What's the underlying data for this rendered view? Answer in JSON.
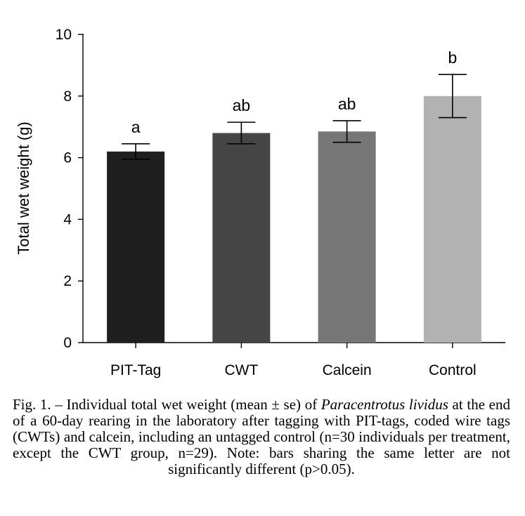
{
  "chart_data": {
    "type": "bar",
    "title": "",
    "xlabel": "",
    "ylabel": "Total wet weight (g)",
    "ylim": [
      0,
      10
    ],
    "yticks": [
      "0",
      "2",
      "4",
      "6",
      "8",
      "10"
    ],
    "grid": false,
    "categories": [
      "PIT-Tag",
      "CWT",
      "Calcein",
      "Control"
    ],
    "values": [
      6.2,
      6.8,
      6.85,
      8.0
    ],
    "error_low": [
      5.95,
      6.45,
      6.5,
      7.3
    ],
    "error_high": [
      6.45,
      7.15,
      7.2,
      8.7
    ],
    "significance_letters": [
      "a",
      "ab",
      "ab",
      "b"
    ],
    "colors": [
      "#1f1f1f",
      "#454545",
      "#777777",
      "#b2b2b2"
    ]
  },
  "caption": {
    "lead": "Fig. 1. – Individual total wet weight (mean ± se) of ",
    "species": "Paracentrotus lividus",
    "rest": " at the end of a 60-day rearing in the laboratory after tagging with PIT-tags, coded wire tags (CWTs) and calcein, including an untagged control (n=30 individuals per treatment, except the CWT group, n=29). Note: bars sharing the same letter are not significantly different (p>0.05)."
  }
}
